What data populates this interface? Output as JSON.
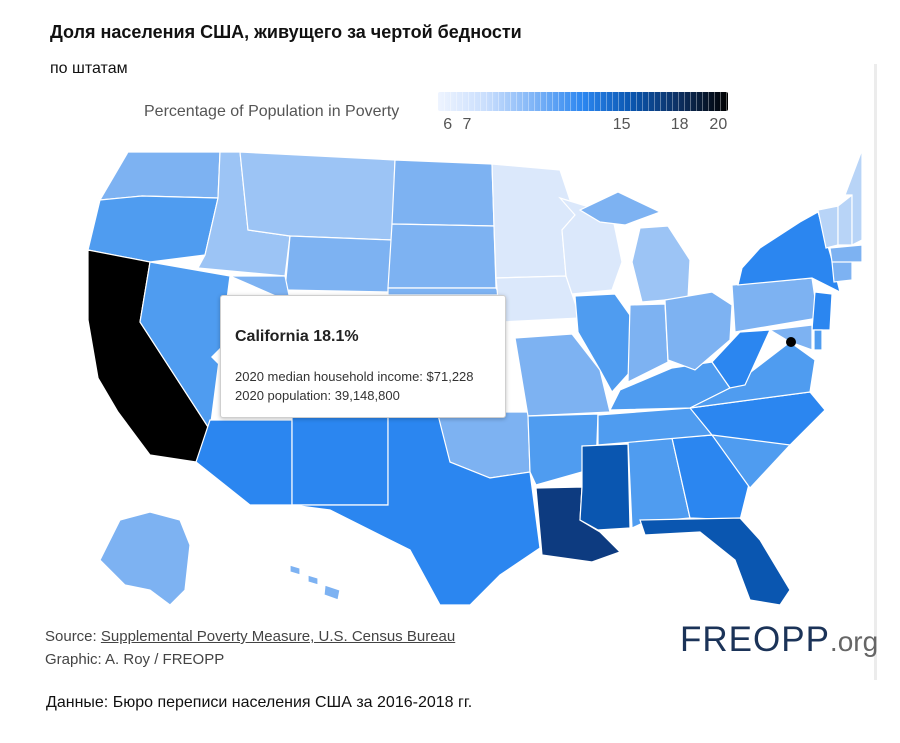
{
  "header": {
    "title": "Доля населения США, живущего за чертой бедности",
    "subtitle": "по штатам"
  },
  "legend": {
    "label": "Percentage of Population in Poverty",
    "ticks": [
      {
        "label": "6",
        "value": 6
      },
      {
        "label": "7",
        "value": 7
      },
      {
        "label": "15",
        "value": 15
      },
      {
        "label": "18",
        "value": 18
      },
      {
        "label": "20",
        "value": 20
      }
    ],
    "range": [
      5.5,
      20.5
    ],
    "colors": [
      "#eef4ff",
      "#c9defd",
      "#7eb4f7",
      "#2b86f0",
      "#0a56b0",
      "#0d2f60",
      "#000000"
    ]
  },
  "map": {
    "colors": {
      "very_light": "#dbe8fb",
      "light": "#b8d4f7",
      "light_mid": "#9cc4f5",
      "mid": "#7db2f2",
      "mid_dark": "#4f9cf0",
      "blue": "#2b86f0",
      "deep": "#0a56b0",
      "darkest": "#0d3b80",
      "highlight": "#000000",
      "border": "#ffffff"
    },
    "selected_state": "California"
  },
  "tooltip": {
    "title": "California 18.1%",
    "income_line": "2020 median household income: $71,228",
    "population_line": "2020 population: 39,148,800"
  },
  "footer": {
    "source_prefix": "Source: ",
    "source_link": "Supplemental Poverty Measure, U.S. Census Bureau",
    "graphic": "Graphic: A. Roy / FREOPP",
    "logo_main": "FREOPP",
    "logo_suffix": ".org"
  },
  "data_note": "Данные: Бюро переписи населения США за 2016-2018 гг."
}
